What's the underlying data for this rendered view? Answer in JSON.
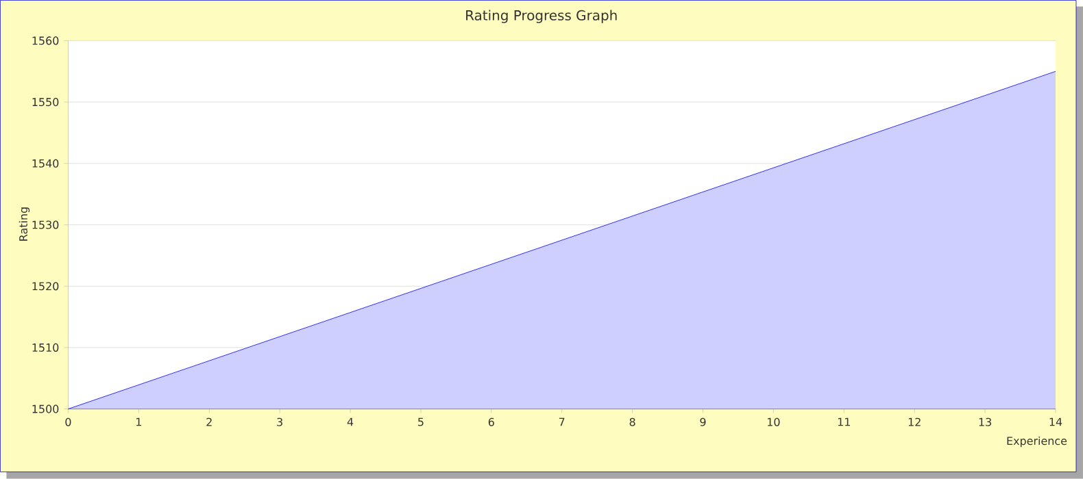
{
  "chart_data": {
    "type": "area",
    "title": "Rating Progress Graph",
    "xlabel": "Experience",
    "ylabel": "Rating",
    "x": [
      0,
      14
    ],
    "series": [
      {
        "color": "#0000ff",
        "values": [
          1500,
          1555
        ]
      }
    ],
    "xlim": [
      0,
      14
    ],
    "xticks": [
      0,
      1,
      2,
      3,
      4,
      5,
      6,
      7,
      8,
      9,
      10,
      11,
      12,
      13,
      14
    ],
    "ylim": [
      1500,
      1560
    ],
    "yticks": [
      1500,
      1510,
      1520,
      1530,
      1540,
      1550,
      1560
    ],
    "grid": "y"
  }
}
